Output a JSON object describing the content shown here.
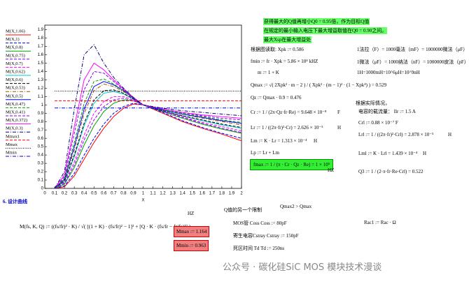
{
  "chart_data": {
    "type": "line",
    "xlabel": "X",
    "x": [
      0.1,
      0.2,
      0.3,
      0.4,
      0.5,
      0.6,
      0.7,
      0.8,
      0.9,
      1,
      1.2,
      1.4,
      1.6,
      1.8,
      2
    ],
    "xlim": [
      0,
      2
    ],
    "xticks": [
      0,
      0.1,
      0.2,
      0.3,
      0.4,
      0.5,
      0.6,
      0.7,
      0.8,
      0.9,
      1,
      1.1,
      1.2,
      1.3,
      1.4,
      1.5,
      1.6,
      1.7,
      1.8,
      1.9,
      2
    ],
    "ylim": [
      0,
      1.955
    ],
    "yticks": [
      0,
      0.1,
      0.2,
      0.3,
      0.4,
      0.5,
      0.6,
      0.7,
      0.8,
      0.9,
      1,
      1.1,
      1.2,
      1.3,
      1.4,
      1.5,
      1.6,
      1.7,
      1.8,
      1.9
    ],
    "legend": "left",
    "series": [
      {
        "name": "M(X,1.06)",
        "color": "#ff0000",
        "style": "solid",
        "values": [
          0,
          0.02,
          0.15,
          0.35,
          0.55,
          0.72,
          0.86,
          0.96,
          1.01,
          1,
          0.9,
          0.8,
          0.72,
          0.65,
          0.57
        ]
      },
      {
        "name": "M(X,1)",
        "color": "#0000ff",
        "style": "dashed",
        "values": [
          0,
          0.03,
          0.18,
          0.4,
          0.6,
          0.77,
          0.9,
          0.98,
          1.02,
          1,
          0.91,
          0.81,
          0.73,
          0.66,
          0.6
        ]
      },
      {
        "name": "M(X,0.8)",
        "color": "#00a000",
        "style": "solid",
        "values": [
          0,
          0.05,
          0.25,
          0.52,
          0.75,
          0.92,
          1.02,
          1.06,
          1.05,
          1,
          0.92,
          0.84,
          0.77,
          0.71,
          0.66
        ]
      },
      {
        "name": "M(X,0.75)",
        "color": "#8000ff",
        "style": "dashed",
        "values": [
          0,
          0.06,
          0.28,
          0.58,
          0.82,
          0.98,
          1.06,
          1.08,
          1.05,
          1,
          0.92,
          0.85,
          0.78,
          0.72,
          0.67
        ]
      },
      {
        "name": "M(X,0.7)",
        "color": "#ff00ff",
        "style": "dashed",
        "values": [
          0,
          0.07,
          0.32,
          0.64,
          0.9,
          1.04,
          1.1,
          1.1,
          1.06,
          1,
          0.93,
          0.86,
          0.79,
          0.74,
          0.69
        ]
      },
      {
        "name": "M(X,0.62)",
        "color": "#00c8c8",
        "style": "solid",
        "values": [
          0,
          0.08,
          0.38,
          0.75,
          1.02,
          1.14,
          1.16,
          1.13,
          1.07,
          1,
          0.93,
          0.87,
          0.81,
          0.76,
          0.72
        ]
      },
      {
        "name": "M(X,0.6)",
        "color": "#000000",
        "style": "dashed",
        "values": [
          0,
          0.09,
          0.4,
          0.78,
          1.06,
          1.17,
          1.18,
          1.14,
          1.07,
          1,
          0.93,
          0.87,
          0.82,
          0.77,
          0.73
        ]
      },
      {
        "name": "M(X,0.53)",
        "color": "#a05000",
        "style": "dashdot",
        "values": [
          0,
          0.1,
          0.46,
          0.9,
          1.17,
          1.25,
          1.22,
          1.16,
          1.08,
          1,
          0.94,
          0.89,
          0.84,
          0.8,
          0.76
        ]
      },
      {
        "name": "M(X,0.5)",
        "color": "#0000ff",
        "style": "solid",
        "values": [
          0,
          0.11,
          0.5,
          0.95,
          1.22,
          1.28,
          1.24,
          1.17,
          1.08,
          1,
          0.94,
          0.89,
          0.85,
          0.81,
          0.78
        ]
      },
      {
        "name": "M(X,0.47)",
        "color": "#00a000",
        "style": "dashed",
        "values": [
          0,
          0.12,
          0.55,
          1.02,
          1.28,
          1.31,
          1.25,
          1.17,
          1.08,
          1,
          0.94,
          0.9,
          0.86,
          0.82,
          0.79
        ]
      },
      {
        "name": "M(X,0.41)",
        "color": "#8000ff",
        "style": "dashed",
        "values": [
          0,
          0.14,
          0.66,
          1.18,
          1.4,
          1.38,
          1.28,
          1.18,
          1.08,
          1,
          0.95,
          0.91,
          0.87,
          0.84,
          0.82
        ]
      },
      {
        "name": "M(X,0.372)",
        "color": "#ff00ff",
        "style": "solid",
        "values": [
          0,
          0.16,
          0.74,
          1.3,
          1.5,
          1.42,
          1.3,
          1.19,
          1.09,
          1,
          0.95,
          0.91,
          0.88,
          0.86,
          0.84
        ]
      },
      {
        "name": "M(X,0.3)",
        "color": "#000080",
        "style": "dashdot",
        "values": [
          0,
          0.2,
          0.95,
          1.6,
          1.72,
          1.5,
          1.33,
          1.2,
          1.09,
          1,
          0.96,
          0.93,
          0.91,
          0.89,
          0.87
        ]
      },
      {
        "name": "Mmax1",
        "color": "#ff0000",
        "style": "dashed",
        "values": [
          1.05,
          1.05,
          1.05,
          1.05,
          1.05,
          1.05,
          1.05,
          1.05,
          1.05,
          1.05,
          1.05,
          1.05,
          1.05,
          1.05,
          1.05
        ]
      },
      {
        "name": "Mmax",
        "color": "#000000",
        "style": "dotted",
        "values": [
          1.164,
          1.164,
          1.164,
          1.164,
          1.164,
          1.164,
          1.164,
          1.164,
          1.164,
          1.164,
          1.164,
          1.164,
          1.164,
          1.164,
          1.164
        ]
      },
      {
        "name": "Mmin",
        "color": "#0000ff",
        "style": "dashdot",
        "values": [
          0.963,
          0.963,
          0.963,
          0.963,
          0.963,
          0.963,
          0.963,
          0.963,
          0.963,
          0.963,
          0.963,
          0.963,
          0.963,
          0.963,
          0.963
        ]
      }
    ]
  },
  "notes": {
    "n1": "获得最大的Q值再增小Q0 = 0.95倍，作为目标Q值",
    "n2": "在规定的最小输入电压下最大增益取值在Q0 = 0.90之间。",
    "n3": "最大Xsp在最大增益处",
    "xpk": "根据图读取:     Xpk := 0.586",
    "fmin": "fmin := fr · Xpk = 5.86 × 10⁴  kHZ",
    "m": "m := 1 + K",
    "qmax": "Qmax := √( 2Xpk² · m − 2 ) / ( Xpk² · (m − 1)² · (1 − Xpk⁴) ) = 0.529",
    "qz": "Qz := Qmax · 0.9 = 0.476",
    "cr": "Cr := 1 / (2π·Qz·fr·Re) = 9.648 × 10⁻⁸",
    "cr_unit": "F",
    "lr": "Lr := 1 / ((2π·fr)²·Cr) = 2.626 × 10⁻⁵",
    "lr_unit": "H",
    "lm": "Lm := K · Lr = 1.313 × 10⁻⁴",
    "lm_unit": "H",
    "lp": "Lp := Lr + Lm",
    "fmax": "fmax := 1 / (π · Cr · Qz · Re) = 1 × 10⁵",
    "fmax_unit": "HZ",
    "f1": "1法拉（F）= 1000毫法（mF）= 1000000微法（μF）",
    "f2": "1微法（μF）= 1000纳法（nF）= 1000000皮法（pF）",
    "f3": "1H=1000mH=10^6μH=10^9nH",
    "act": "根据实际情况，",
    "ilr": "电容的载流量：   Ilr := 1.5     A",
    "crl": "Crl := 0.88 × 10⁻⁷     F",
    "lrl": "Lrl := 1 / ((2π·fr)²·Crl) = 2.878 × 10⁻⁵",
    "lrl_unit": "H",
    "lml": "Lml := K · Lrl = 1.439 × 10⁻⁴",
    "lml_unit": "H",
    "q3": "Q3 := 1 / (2·π·fr·Re·Crl) = 0.522",
    "sec": "6. 设计曲线",
    "mfun": "M(fs, K, Q) := ((fs/fr)² · K) / √( [(1 + K) · (fs/fr)² − 1]² + [Q · K · (fs/fr − fr/fs)]² )",
    "hz": "HZ",
    "qlim": "Q值的另一个限制",
    "qmax2": "Qmax2 > Qmax",
    "coss": "MOS管 Coss        Coss := 80pF",
    "cstray": "寄生电容Cstray     Cstray := 150pF",
    "td": "死区时间 Td         Td := 250ns",
    "rac": "Rac1 := Rac · Ω",
    "mmax": "Mmax := 1.164",
    "mmin": "Mmin := 0.963",
    "wm": "公众号 · 碳化硅SiC MOS 模块技术漫谈"
  }
}
